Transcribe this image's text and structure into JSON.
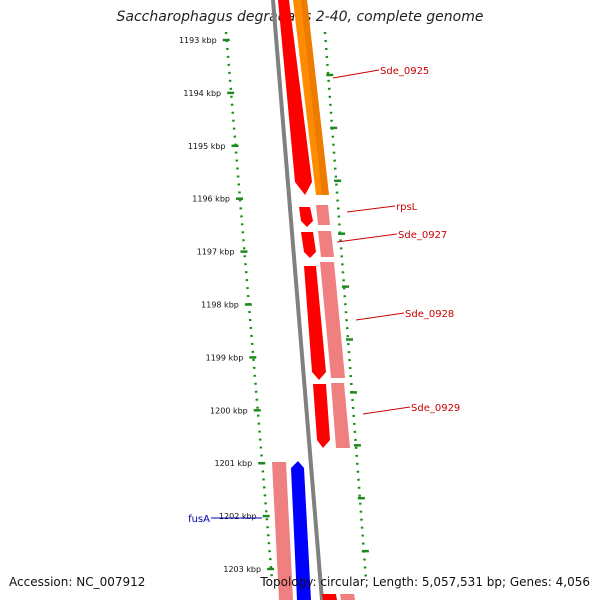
{
  "title": "Saccharophagus degradans 2-40, complete genome",
  "footer": {
    "accession": "Accession: NC_007912",
    "summary": "Topology: circular; Length: 5,057,531 bp; Genes: 4,056"
  },
  "colors": {
    "backbone": "#808080",
    "tick": "#1e8a1e",
    "forward_gene": "#ff0000",
    "forward_cds": "#f08080",
    "reverse_gene": "#0000ff",
    "reverse_cds": "#f08080",
    "orange_gene": "#ff8c00",
    "label_red": "#cc0000",
    "label_blue": "#0000aa"
  },
  "axis": {
    "unit": "kbp",
    "ticks": [
      "1193 kbp",
      "1194 kbp",
      "1195 kbp",
      "1196 kbp",
      "1197 kbp",
      "1198 kbp",
      "1199 kbp",
      "1200 kbp",
      "1201 kbp",
      "1202 kbp",
      "1203 kbp"
    ]
  },
  "genes": [
    {
      "name": "Sde_0925",
      "color": "orange",
      "strand": "forward"
    },
    {
      "name": "rpsL",
      "color": "red",
      "strand": "forward"
    },
    {
      "name": "Sde_0927",
      "color": "red",
      "strand": "forward"
    },
    {
      "name": "Sde_0928",
      "color": "red",
      "strand": "forward"
    },
    {
      "name": "Sde_0929",
      "color": "red",
      "strand": "forward"
    },
    {
      "name": "fusA",
      "color": "blue",
      "strand": "reverse"
    }
  ]
}
